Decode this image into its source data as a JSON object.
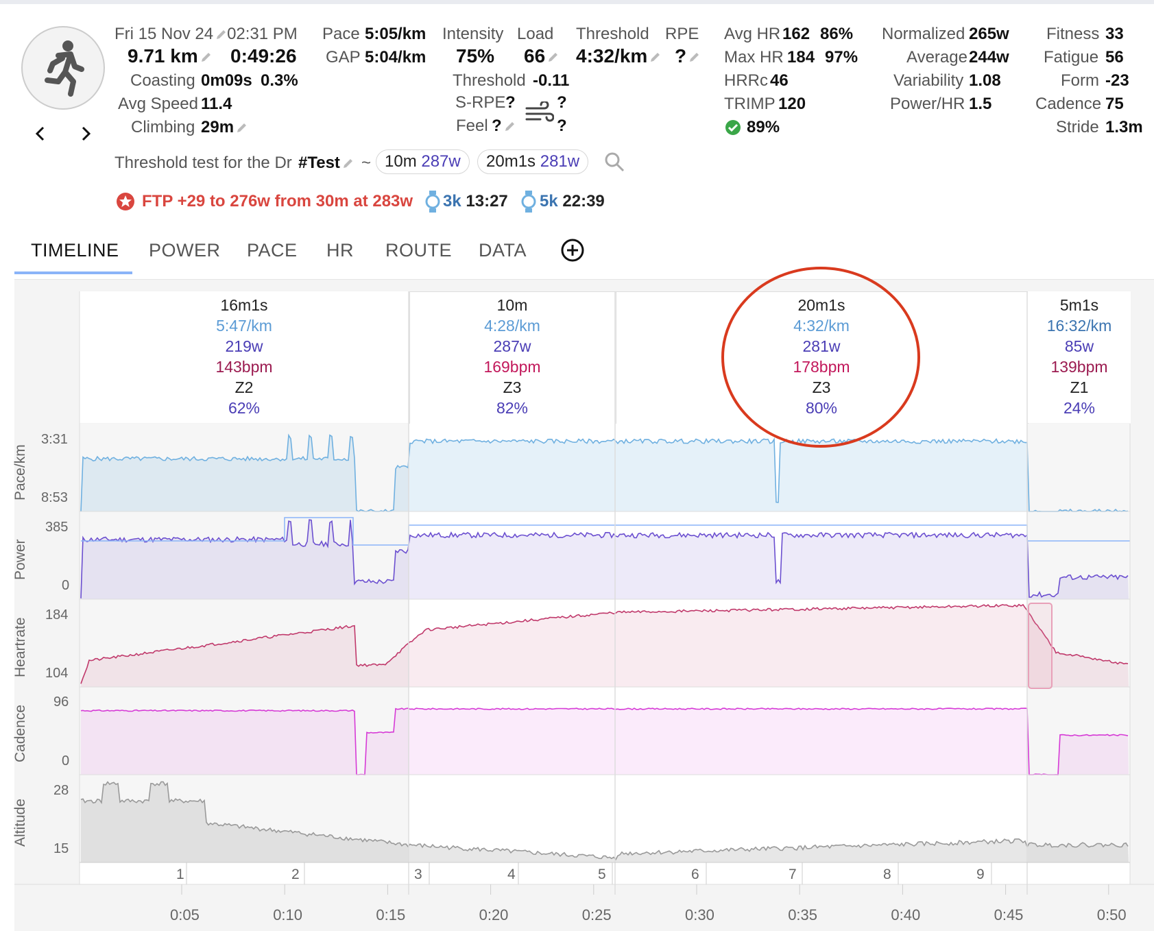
{
  "header": {
    "date": "Fri 15 Nov 24",
    "time": "02:31 PM",
    "distance": "9.71 km",
    "duration": "0:49:26",
    "coasting_label": "Coasting",
    "coasting_value": "0m09s",
    "coasting_pct": "0.3%",
    "avg_speed_label": "Avg Speed",
    "avg_speed_value": "11.4",
    "climbing_label": "Climbing",
    "climbing_value": "29m",
    "pace_label": "Pace",
    "pace_value": "5:05/km",
    "gap_label": "GAP",
    "gap_value": "5:04/km",
    "intensity_label": "Intensity",
    "intensity_value": "75%",
    "load_label": "Load",
    "load_value": "66",
    "threshold_label": "Threshold",
    "threshold_value": "4:32/km",
    "rpe_label": "RPE",
    "rpe_value": "?",
    "threshold2_label": "Threshold",
    "threshold2_value": "-0.11",
    "srpe_label": "S-RPE",
    "srpe_value": "?",
    "feel_label": "Feel",
    "feel_value": "?",
    "wind_q1": "?",
    "wind_q2": "?",
    "avg_hr_label": "Avg HR",
    "avg_hr_value": "162",
    "avg_hr_pct": "86%",
    "max_hr_label": "Max HR",
    "max_hr_value": "184",
    "max_hr_pct": "97%",
    "hrrc_label": "HRRc",
    "hrrc_value": "46",
    "trimp_label": "TRIMP",
    "trimp_value": "120",
    "check_value": "89%",
    "normalized_label": "Normalized",
    "normalized_value": "265w",
    "average_label": "Average",
    "average_value": "244w",
    "variability_label": "Variability",
    "variability_value": "1.08",
    "powerhr_label": "Power/HR",
    "powerhr_value": "1.5",
    "fitness_label": "Fitness",
    "fitness_value": "33",
    "fatigue_label": "Fatigue",
    "fatigue_value": "56",
    "form_label": "Form",
    "form_value": "-23",
    "cadence_label": "Cadence",
    "cadence_value": "75",
    "stride_label": "Stride",
    "stride_value": "1.3m",
    "description_text": "Threshold test for the Dr",
    "description_tag": "#Test",
    "description_tilde": "~",
    "pill1_time": "10m",
    "pill1_watts": "287w",
    "pill2_time": "20m1s",
    "pill2_watts": "281w",
    "ftp_text": "FTP +29 to 276w from 30m at 283w",
    "best1_dist": "3k",
    "best1_time": "13:27",
    "best2_dist": "5k",
    "best2_time": "22:39"
  },
  "tabs": [
    "TIMELINE",
    "POWER",
    "PACE",
    "HR",
    "ROUTE",
    "DATA"
  ],
  "segments": [
    {
      "dur": "16m1s",
      "pace": "5:47/km",
      "power": "219w",
      "hr": "143bpm",
      "zone": "Z2",
      "pct": "62%"
    },
    {
      "dur": "10m",
      "pace": "4:28/km",
      "power": "287w",
      "hr": "169bpm",
      "zone": "Z3",
      "pct": "82%"
    },
    {
      "dur": "20m1s",
      "pace": "4:32/km",
      "power": "281w",
      "hr": "178bpm",
      "zone": "Z3",
      "pct": "80%"
    },
    {
      "dur": "5m1s",
      "pace": "16:32/km",
      "power": "85w",
      "hr": "139bpm",
      "zone": "Z1",
      "pct": "24%"
    }
  ],
  "chart_panels": {
    "pace": {
      "label": "Pace/km",
      "max": "3:31",
      "min": "8:53"
    },
    "power": {
      "label": "Power",
      "max": "385",
      "min": "0"
    },
    "hr": {
      "label": "Heartrate",
      "max": "184",
      "min": "104"
    },
    "cadence": {
      "label": "Cadence",
      "max": "96",
      "min": "0"
    },
    "altitude": {
      "label": "Altitude",
      "max": "28",
      "min": "15"
    }
  },
  "laps": [
    "1",
    "2",
    "3",
    "4",
    "5",
    "6",
    "7",
    "8",
    "9"
  ],
  "time_ticks": [
    "0:05",
    "0:10",
    "0:15",
    "0:20",
    "0:25",
    "0:30",
    "0:35",
    "0:40",
    "0:45",
    "0:50"
  ],
  "colors": {
    "pace": "#6fb0e0",
    "power": "#6b4fd0",
    "hr": "#c0396b",
    "cadence": "#d63ad6",
    "altitude": "#999999",
    "ftp_red": "#d9463f",
    "circle": "#d93a1e"
  },
  "chart_data": [
    {
      "type": "line",
      "ylabel": "Pace/km",
      "yticks": [
        "3:31",
        "8:53"
      ],
      "x": [
        "0:05",
        "0:10",
        "0:15",
        "0:20",
        "0:25",
        "0:30",
        "0:35",
        "0:40",
        "0:45",
        "0:50"
      ]
    },
    {
      "type": "line",
      "ylabel": "Power",
      "ylim": [
        0,
        385
      ],
      "x": [
        "0:05",
        "0:10",
        "0:15",
        "0:20",
        "0:25",
        "0:30",
        "0:35",
        "0:40",
        "0:45",
        "0:50"
      ]
    },
    {
      "type": "line",
      "ylabel": "Heartrate",
      "ylim": [
        104,
        184
      ],
      "x": [
        "0:05",
        "0:10",
        "0:15",
        "0:20",
        "0:25",
        "0:30",
        "0:35",
        "0:40",
        "0:45",
        "0:50"
      ]
    },
    {
      "type": "line",
      "ylabel": "Cadence",
      "ylim": [
        0,
        96
      ],
      "x": [
        "0:05",
        "0:10",
        "0:15",
        "0:20",
        "0:25",
        "0:30",
        "0:35",
        "0:40",
        "0:45",
        "0:50"
      ]
    },
    {
      "type": "area",
      "ylabel": "Altitude",
      "ylim": [
        15,
        28
      ],
      "x": [
        "0:05",
        "0:10",
        "0:15",
        "0:20",
        "0:25",
        "0:30",
        "0:35",
        "0:40",
        "0:45",
        "0:50"
      ]
    }
  ]
}
